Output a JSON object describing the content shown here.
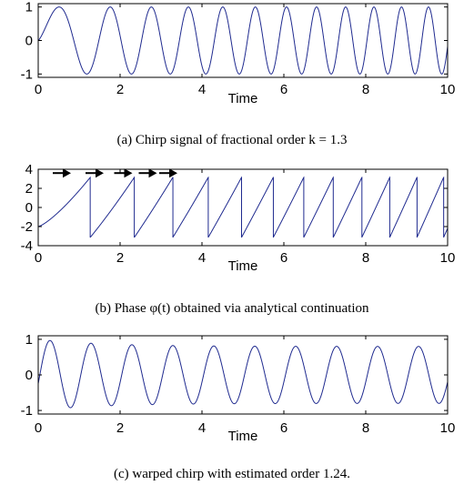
{
  "chart_data": [
    {
      "type": "line",
      "title": "",
      "xlabel": "Time",
      "ylabel": "",
      "xlim": [
        0,
        10
      ],
      "ylim": [
        -1.1,
        1.1
      ],
      "xticks": [
        "0",
        "2",
        "4",
        "6",
        "8",
        "10"
      ],
      "yticks": [
        "1",
        "0",
        "-1"
      ],
      "caption": "(a)  Chirp signal of fractional order k = 1.3",
      "series": [
        {
          "function": "sin(phase(t))",
          "phase": "3.77 * t^1.3",
          "line_color": "#1f2a8f"
        }
      ]
    },
    {
      "type": "line",
      "title": "",
      "xlabel": "Time",
      "ylabel": "",
      "xlim": [
        0,
        10
      ],
      "ylim": [
        -4,
        4
      ],
      "xticks": [
        "0",
        "2",
        "4",
        "6",
        "8",
        "10"
      ],
      "yticks": [
        "4",
        "2",
        "0",
        "-2",
        "-4"
      ],
      "caption": "(b)  Phase φ(t) obtained via analytical continuation",
      "series": [
        {
          "function": "wrapped phase",
          "phase": "3.77 * t^1.3 - 2",
          "line_color": "#1f2a8f"
        }
      ],
      "annotations": [
        {
          "type": "arrow",
          "direction": "right",
          "x": [
            0.8,
            1.6,
            2.3,
            2.9,
            3.4
          ],
          "y": 3.6
        }
      ]
    },
    {
      "type": "line",
      "title": "",
      "xlabel": "Time",
      "ylabel": "",
      "xlim": [
        0,
        10
      ],
      "ylim": [
        -1.1,
        1.1
      ],
      "xticks": [
        "0",
        "2",
        "4",
        "6",
        "8",
        "10"
      ],
      "yticks": [
        "1",
        "0",
        "-1"
      ],
      "caption": "(c)  warped chirp with estimated order 1.24.",
      "series": [
        {
          "function": "envelope * sin(2π t / 1.0)",
          "envelope": "1 decaying to about 0.8",
          "line_color": "#1f2a8f"
        }
      ]
    }
  ]
}
